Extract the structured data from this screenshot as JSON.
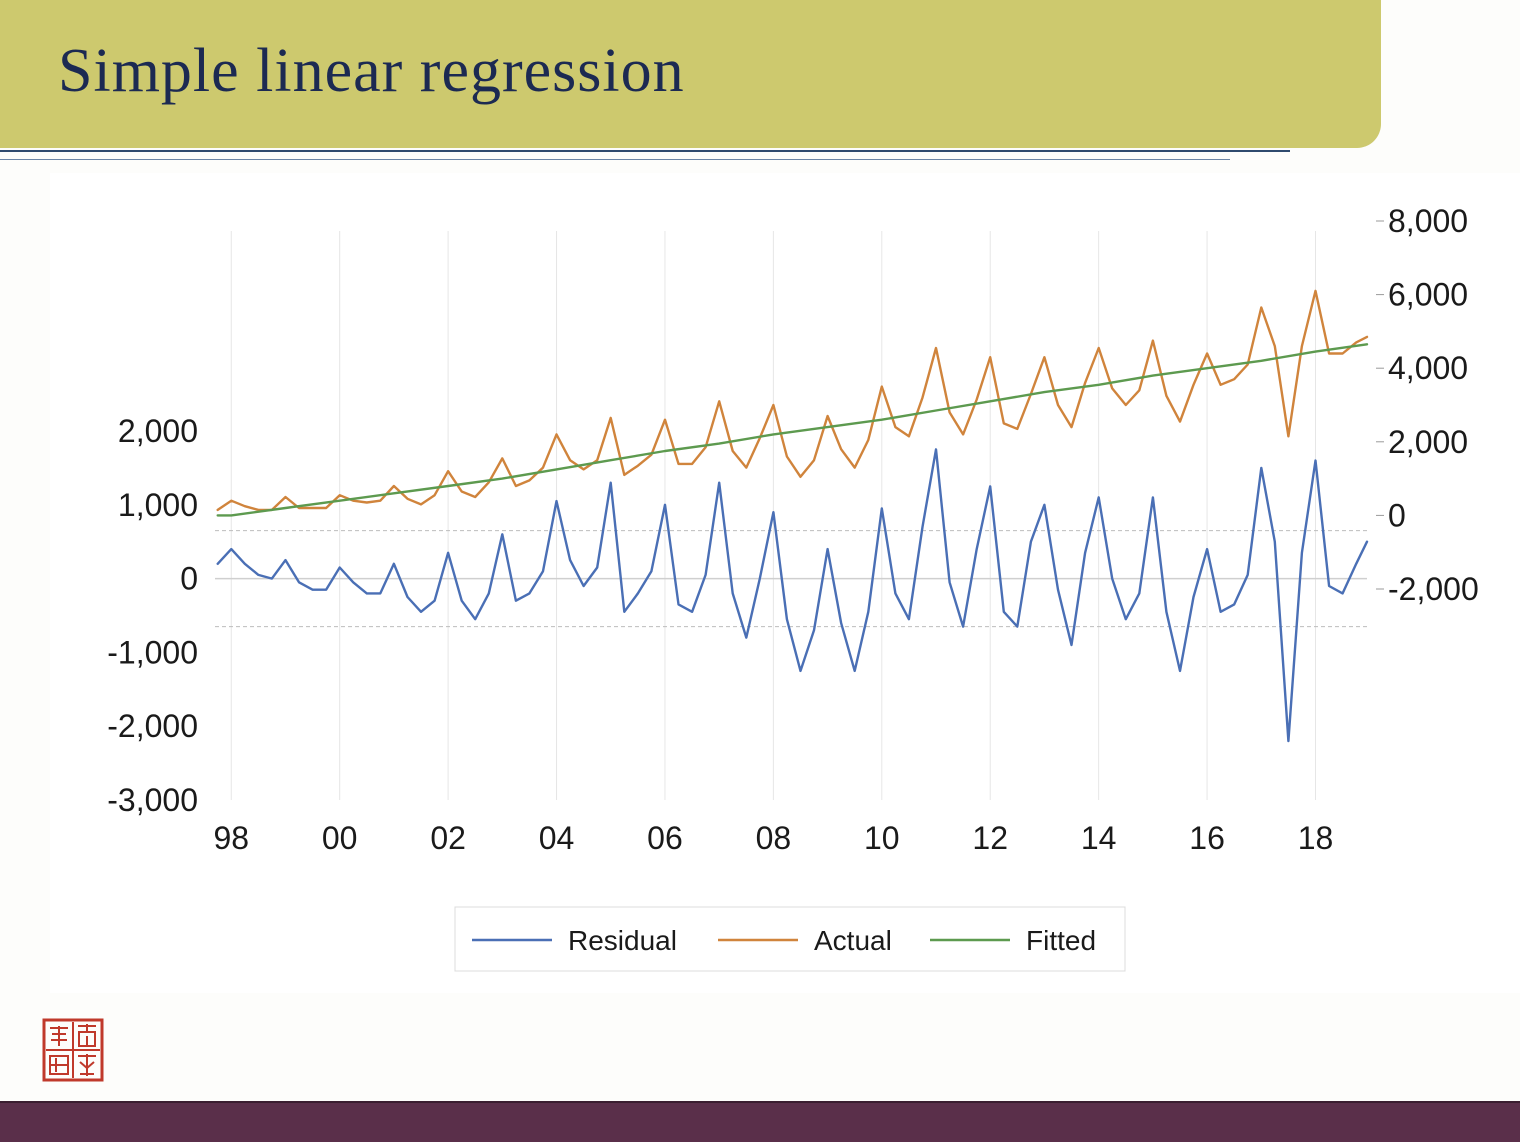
{
  "slide": {
    "title": "Simple linear regression"
  },
  "colors": {
    "title_bar": "#cdc96e",
    "title_text": "#1c2a52",
    "footer": "#5a2f4a",
    "seal": "#c0392b"
  },
  "chart_data": {
    "type": "line",
    "title": "",
    "x_tick_labels": [
      "98",
      "00",
      "02",
      "04",
      "06",
      "08",
      "10",
      "12",
      "14",
      "16",
      "18"
    ],
    "x_range": [
      1997.7,
      2018.95
    ],
    "left_axis": {
      "ylim": [
        -3000,
        3000
      ],
      "ticks": [
        -3000,
        -2000,
        -1000,
        0,
        1000,
        2000
      ],
      "tick_labels": [
        "-3,000",
        "-2,000",
        "-1,000",
        "0",
        "1,000",
        "2,000"
      ],
      "dashed_at": [
        -650,
        650
      ]
    },
    "right_axis": {
      "ylim": [
        -2000,
        8000
      ],
      "ticks": [
        -2000,
        0,
        2000,
        4000,
        6000,
        8000
      ],
      "tick_labels": [
        "-2,000",
        "0",
        "2,000",
        "4,000",
        "6,000",
        "8,000"
      ]
    },
    "grid": "vertical",
    "legend_placement": "bottom",
    "series": [
      {
        "name": "Residual",
        "axis": "left",
        "color": "#4a6fb5",
        "x": [
          1997.75,
          1998.0,
          1998.25,
          1998.5,
          1998.75,
          1999.0,
          1999.25,
          1999.5,
          1999.75,
          2000.0,
          2000.25,
          2000.5,
          2000.75,
          2001.0,
          2001.25,
          2001.5,
          2001.75,
          2002.0,
          2002.25,
          2002.5,
          2002.75,
          2003.0,
          2003.25,
          2003.5,
          2003.75,
          2004.0,
          2004.25,
          2004.5,
          2004.75,
          2005.0,
          2005.25,
          2005.5,
          2005.75,
          2006.0,
          2006.25,
          2006.5,
          2006.75,
          2007.0,
          2007.25,
          2007.5,
          2007.75,
          2008.0,
          2008.25,
          2008.5,
          2008.75,
          2009.0,
          2009.25,
          2009.5,
          2009.75,
          2010.0,
          2010.25,
          2010.5,
          2010.75,
          2011.0,
          2011.25,
          2011.5,
          2011.75,
          2012.0,
          2012.25,
          2012.5,
          2012.75,
          2013.0,
          2013.25,
          2013.5,
          2013.75,
          2014.0,
          2014.25,
          2014.5,
          2014.75,
          2015.0,
          2015.25,
          2015.5,
          2015.75,
          2016.0,
          2016.25,
          2016.5,
          2016.75,
          2017.0,
          2017.25,
          2017.5,
          2017.75,
          2018.0,
          2018.25,
          2018.5,
          2018.75,
          2018.95
        ],
        "values": [
          200,
          400,
          200,
          50,
          0,
          250,
          -50,
          -150,
          -150,
          150,
          -50,
          -200,
          -200,
          200,
          -250,
          -450,
          -300,
          350,
          -300,
          -550,
          -200,
          600,
          -300,
          -200,
          100,
          1050,
          250,
          -100,
          150,
          1300,
          -450,
          -200,
          100,
          1000,
          -350,
          -450,
          50,
          1300,
          -200,
          -800,
          0,
          900,
          -550,
          -1250,
          -700,
          400,
          -600,
          -1250,
          -450,
          950,
          -200,
          -550,
          700,
          1750,
          -50,
          -650,
          400,
          1250,
          -450,
          -650,
          500,
          1000,
          -150,
          -900,
          350,
          1100,
          0,
          -550,
          -200,
          1100,
          -450,
          -1250,
          -250,
          400,
          -450,
          -350,
          50,
          1500,
          500,
          -2200,
          350,
          1600,
          -100,
          -200,
          200,
          500
        ]
      },
      {
        "name": "Actual",
        "axis": "right",
        "color": "#d0843c",
        "x": [
          1997.75,
          1998.0,
          1998.25,
          1998.5,
          1998.75,
          1999.0,
          1999.25,
          1999.5,
          1999.75,
          2000.0,
          2000.25,
          2000.5,
          2000.75,
          2001.0,
          2001.25,
          2001.5,
          2001.75,
          2002.0,
          2002.25,
          2002.5,
          2002.75,
          2003.0,
          2003.25,
          2003.5,
          2003.75,
          2004.0,
          2004.25,
          2004.5,
          2004.75,
          2005.0,
          2005.25,
          2005.5,
          2005.75,
          2006.0,
          2006.25,
          2006.5,
          2006.75,
          2007.0,
          2007.25,
          2007.5,
          2007.75,
          2008.0,
          2008.25,
          2008.5,
          2008.75,
          2009.0,
          2009.25,
          2009.5,
          2009.75,
          2010.0,
          2010.25,
          2010.5,
          2010.75,
          2011.0,
          2011.25,
          2011.5,
          2011.75,
          2012.0,
          2012.25,
          2012.5,
          2012.75,
          2013.0,
          2013.25,
          2013.5,
          2013.75,
          2014.0,
          2014.25,
          2014.5,
          2014.75,
          2015.0,
          2015.25,
          2015.5,
          2015.75,
          2016.0,
          2016.25,
          2016.5,
          2016.75,
          2017.0,
          2017.25,
          2017.5,
          2017.75,
          2018.0,
          2018.25,
          2018.5,
          2018.75,
          2018.95
        ],
        "values": [
          150,
          400,
          250,
          150,
          150,
          500,
          200,
          200,
          200,
          550,
          400,
          350,
          400,
          800,
          450,
          300,
          550,
          1200,
          650,
          500,
          900,
          1550,
          800,
          950,
          1300,
          2200,
          1500,
          1250,
          1500,
          2650,
          1100,
          1350,
          1650,
          2600,
          1400,
          1400,
          1850,
          3100,
          1750,
          1300,
          2100,
          3000,
          1600,
          1050,
          1500,
          2700,
          1800,
          1300,
          2050,
          3500,
          2400,
          2150,
          3200,
          4550,
          2800,
          2200,
          3150,
          4300,
          2500,
          2350,
          3300,
          4300,
          3000,
          2400,
          3600,
          4550,
          3450,
          3000,
          3400,
          4750,
          3250,
          2550,
          3550,
          4400,
          3550,
          3700,
          4100,
          5650,
          4600,
          2150,
          4600,
          6100,
          4400,
          4400,
          4700,
          4850
        ]
      },
      {
        "name": "Fitted",
        "axis": "right",
        "color": "#5d9a4f",
        "x": [
          1997.75,
          1998.0,
          1999.0,
          2000.0,
          2001.0,
          2002.0,
          2003.0,
          2004.0,
          2005.0,
          2006.0,
          2007.0,
          2008.0,
          2009.0,
          2010.0,
          2011.0,
          2012.0,
          2013.0,
          2014.0,
          2015.0,
          2016.0,
          2017.0,
          2018.0,
          2018.95
        ],
        "values": [
          0,
          0,
          200,
          400,
          600,
          800,
          1000,
          1250,
          1500,
          1750,
          1950,
          2200,
          2400,
          2600,
          2850,
          3100,
          3350,
          3550,
          3800,
          4000,
          4200,
          4450,
          4650
        ]
      }
    ]
  }
}
